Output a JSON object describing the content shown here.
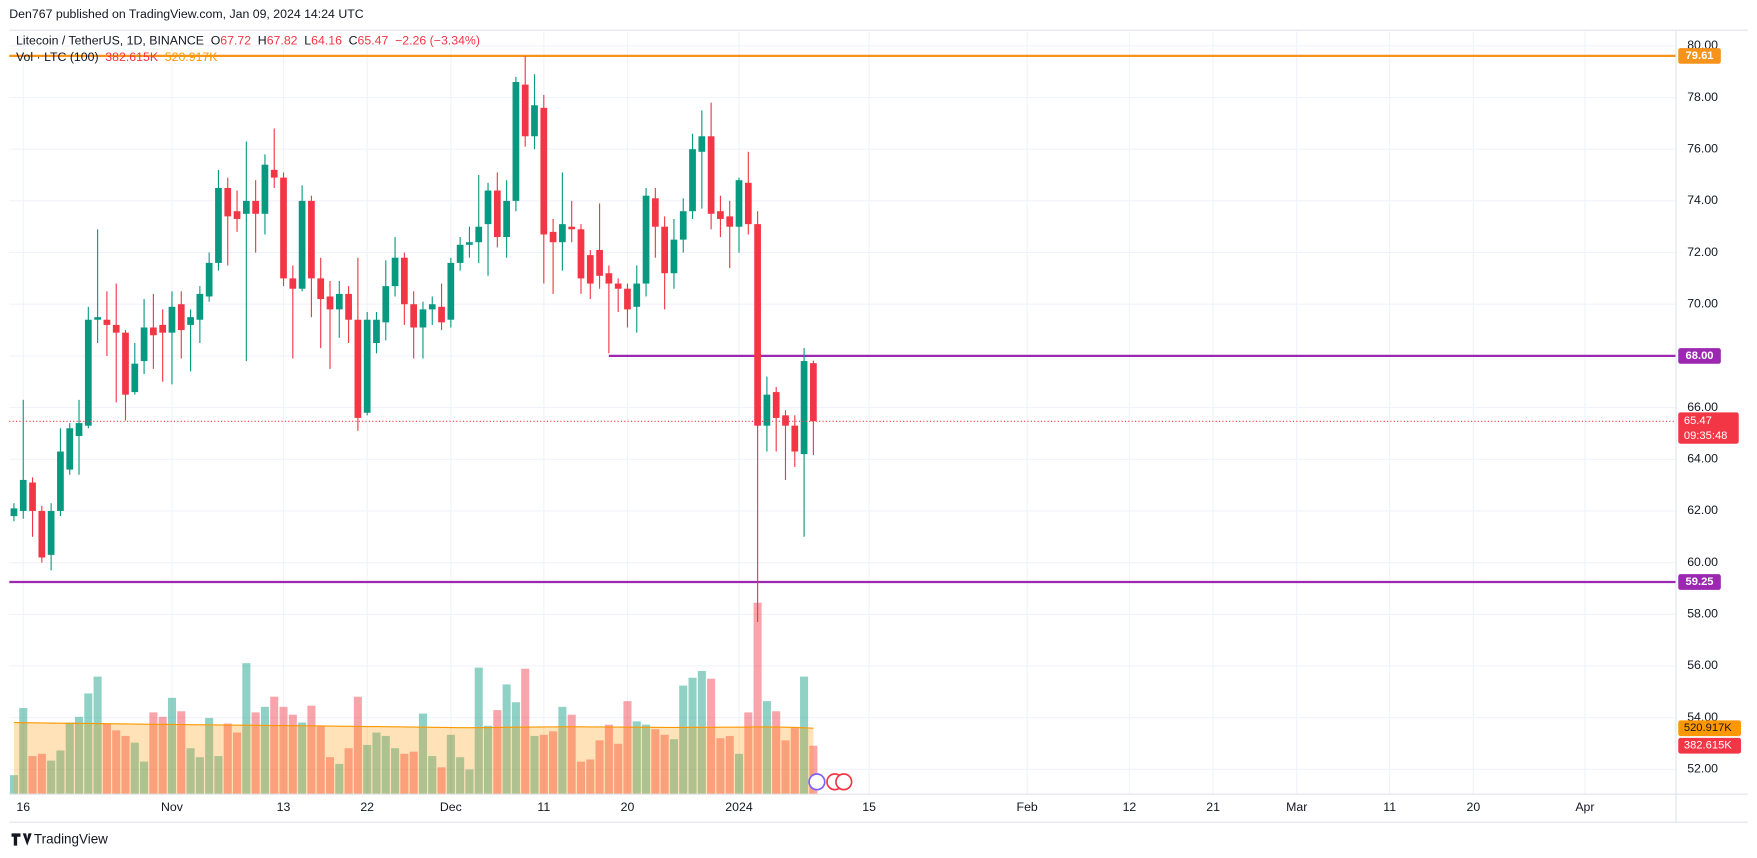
{
  "header": {
    "published": "Den767 published on TradingView.com, Jan 09, 2024 14:24 UTC",
    "brand": "TradingView"
  },
  "chart_data": {
    "type": "candlestick",
    "legend": {
      "symbol": "Litecoin / TetherUS, 1D, BINANCE",
      "ohlc_letters": [
        "O",
        "H",
        "L",
        "C"
      ],
      "change": "−2.26 (−3.34%)",
      "volume_title": "Vol · LTC (100)"
    },
    "up_color": "#089981",
    "down_color": "#f23645",
    "ma_color": "#ff9800",
    "candles": [
      [
        61.8,
        62.3,
        61.6,
        62.1
      ],
      [
        62.0,
        66.3,
        61.7,
        63.2
      ],
      [
        63.1,
        63.3,
        61.0,
        62.0
      ],
      [
        62.0,
        62.2,
        60.0,
        60.2
      ],
      [
        60.3,
        62.3,
        59.7,
        62.0
      ],
      [
        62.0,
        65.2,
        61.8,
        64.3
      ],
      [
        63.6,
        65.4,
        63.4,
        65.2
      ],
      [
        64.9,
        66.3,
        63.4,
        65.4
      ],
      [
        65.3,
        69.9,
        65.2,
        69.4
      ],
      [
        69.4,
        72.9,
        68.5,
        69.5
      ],
      [
        69.4,
        70.5,
        68.0,
        69.2
      ],
      [
        69.2,
        70.8,
        66.2,
        68.9
      ],
      [
        68.9,
        69.0,
        65.5,
        66.5
      ],
      [
        66.6,
        68.5,
        66.5,
        67.7
      ],
      [
        67.8,
        70.2,
        67.3,
        69.1
      ],
      [
        69.1,
        70.4,
        67.5,
        68.8
      ],
      [
        69.2,
        69.8,
        67.0,
        68.9
      ],
      [
        68.9,
        70.5,
        66.9,
        69.9
      ],
      [
        70.0,
        70.5,
        67.9,
        69.0
      ],
      [
        69.2,
        69.8,
        67.4,
        69.5
      ],
      [
        69.4,
        70.7,
        68.5,
        70.4
      ],
      [
        70.3,
        72.0,
        70.1,
        71.6
      ],
      [
        71.6,
        75.2,
        71.3,
        74.5
      ],
      [
        74.5,
        74.9,
        71.5,
        73.4
      ],
      [
        73.6,
        74.4,
        72.8,
        73.3
      ],
      [
        73.5,
        76.3,
        67.8,
        74.0
      ],
      [
        74.0,
        74.8,
        72.0,
        73.5
      ],
      [
        73.5,
        75.8,
        72.7,
        75.4
      ],
      [
        75.2,
        76.8,
        74.5,
        74.9
      ],
      [
        74.9,
        75.1,
        70.7,
        71.0
      ],
      [
        71.0,
        71.5,
        67.9,
        70.6
      ],
      [
        70.6,
        74.6,
        70.5,
        74.0
      ],
      [
        74.0,
        74.2,
        69.5,
        71.0
      ],
      [
        71.0,
        71.8,
        68.3,
        70.2
      ],
      [
        70.3,
        70.9,
        67.5,
        69.8
      ],
      [
        69.8,
        70.9,
        68.7,
        70.4
      ],
      [
        70.4,
        70.7,
        68.5,
        69.4
      ],
      [
        69.4,
        71.8,
        65.1,
        65.6
      ],
      [
        65.8,
        69.7,
        65.7,
        69.4
      ],
      [
        68.5,
        69.7,
        68.1,
        69.4
      ],
      [
        69.3,
        71.7,
        68.6,
        70.7
      ],
      [
        70.7,
        72.6,
        70.3,
        71.8
      ],
      [
        71.8,
        72.0,
        69.2,
        70.0
      ],
      [
        70.0,
        70.5,
        67.9,
        69.1
      ],
      [
        69.1,
        70.1,
        67.9,
        69.8
      ],
      [
        69.8,
        70.3,
        69.2,
        70.0
      ],
      [
        69.9,
        70.8,
        69.0,
        69.3
      ],
      [
        69.4,
        71.8,
        69.1,
        71.6
      ],
      [
        71.6,
        72.6,
        71.3,
        72.3
      ],
      [
        72.3,
        73.0,
        71.8,
        72.4
      ],
      [
        72.4,
        75.0,
        71.6,
        73.0
      ],
      [
        73.1,
        74.7,
        71.1,
        74.4
      ],
      [
        74.4,
        75.1,
        72.2,
        72.6
      ],
      [
        72.6,
        74.8,
        71.8,
        74.0
      ],
      [
        74.0,
        78.8,
        73.6,
        78.6
      ],
      [
        78.5,
        79.6,
        76.1,
        76.5
      ],
      [
        76.5,
        78.9,
        76.0,
        77.7
      ],
      [
        77.6,
        78.1,
        70.8,
        72.7
      ],
      [
        72.8,
        73.3,
        70.4,
        72.4
      ],
      [
        72.4,
        75.1,
        71.3,
        73.1
      ],
      [
        73.0,
        74.0,
        72.4,
        72.9
      ],
      [
        72.9,
        73.1,
        70.4,
        71.0
      ],
      [
        71.9,
        72.1,
        70.2,
        70.8
      ],
      [
        72.1,
        73.9,
        70.6,
        71.1
      ],
      [
        71.2,
        71.5,
        68.1,
        70.8
      ],
      [
        70.8,
        71.0,
        69.7,
        70.6
      ],
      [
        70.6,
        70.8,
        69.1,
        69.8
      ],
      [
        69.9,
        71.5,
        68.9,
        70.8
      ],
      [
        70.8,
        74.5,
        70.3,
        74.2
      ],
      [
        74.1,
        74.5,
        71.8,
        73.0
      ],
      [
        73.0,
        73.4,
        69.8,
        71.2
      ],
      [
        71.2,
        73.3,
        70.6,
        72.5
      ],
      [
        72.5,
        74.1,
        72.0,
        73.6
      ],
      [
        73.6,
        76.6,
        73.3,
        76.0
      ],
      [
        75.9,
        77.5,
        73.7,
        76.5
      ],
      [
        76.5,
        77.8,
        72.9,
        73.5
      ],
      [
        73.6,
        74.2,
        72.6,
        73.3
      ],
      [
        73.4,
        74.0,
        71.4,
        73.0
      ],
      [
        73.0,
        74.9,
        72.0,
        74.8
      ],
      [
        74.7,
        75.9,
        72.7,
        73.1
      ],
      [
        73.1,
        73.6,
        57.7,
        65.3
      ],
      [
        65.3,
        67.2,
        64.3,
        66.5
      ],
      [
        66.6,
        66.8,
        64.3,
        65.6
      ],
      [
        65.7,
        65.9,
        63.2,
        65.3
      ],
      [
        65.3,
        65.7,
        63.7,
        64.3
      ],
      [
        64.2,
        68.3,
        61.0,
        67.8
      ],
      [
        67.72,
        67.82,
        64.16,
        65.47
      ]
    ],
    "volumes": [
      150000,
      681000,
      301000,
      319000,
      265000,
      345000,
      566000,
      611000,
      796000,
      929000,
      558000,
      504000,
      460000,
      407000,
      257000,
      646000,
      611000,
      761000,
      655000,
      363000,
      292000,
      602000,
      301000,
      558000,
      487000,
      1035000,
      646000,
      690000,
      770000,
      690000,
      628000,
      566000,
      699000,
      540000,
      292000,
      239000,
      363000,
      770000,
      389000,
      487000,
      460000,
      363000,
      319000,
      336000,
      637000,
      301000,
      212000,
      469000,
      292000,
      195000,
      1000000,
      540000,
      664000,
      867000,
      726000,
      991000,
      460000,
      469000,
      496000,
      690000,
      628000,
      257000,
      274000,
      425000,
      549000,
      398000,
      735000,
      575000,
      549000,
      513000,
      469000,
      434000,
      858000,
      920000,
      973000,
      912000,
      442000,
      460000,
      319000,
      646000,
      1513000,
      735000,
      655000,
      425000,
      522000,
      929000,
      382615
    ],
    "volume_ma": [
      566000,
      565000,
      564000,
      563000,
      562000,
      561000,
      560000,
      560000,
      559000,
      558000,
      557000,
      556000,
      555000,
      554000,
      553000,
      552000,
      552000,
      551000,
      550000,
      549000,
      548000,
      548000,
      547000,
      546000,
      545000,
      545000,
      544000,
      543000,
      542000,
      542000,
      541000,
      540000,
      540000,
      539000,
      538000,
      537000,
      536000,
      535000,
      534000,
      534000,
      533000,
      532000,
      531000,
      530000,
      529000,
      528000,
      527000,
      526000,
      525000,
      525000,
      525000,
      526000,
      527000,
      528000,
      529000,
      530000,
      530000,
      531000,
      531000,
      532000,
      532000,
      532000,
      531000,
      531000,
      530000,
      530000,
      529000,
      529000,
      528000,
      528000,
      527000,
      527000,
      527000,
      528000,
      528000,
      528000,
      529000,
      529000,
      529000,
      530000,
      531000,
      531000,
      530000,
      529000,
      527000,
      524000,
      520917
    ],
    "volume_labels": {
      "last": "382.615K",
      "ma": "520.917K"
    },
    "countdown": "09:35:48",
    "hlines": [
      {
        "value": 79.61,
        "color": "#f7931a"
      },
      {
        "value": 68,
        "label": "68.00",
        "color": "#9c27b0",
        "from_candle": 64
      },
      {
        "value": 59.25,
        "color": "#9c27b0"
      }
    ],
    "xlim": [
      -0.5,
      178.8
    ],
    "xticks": [
      {
        "value": 1,
        "label": "16"
      },
      {
        "value": 17,
        "label": "Nov"
      },
      {
        "value": 29,
        "label": "13"
      },
      {
        "value": 38,
        "label": "22"
      },
      {
        "value": 47,
        "label": "Dec"
      },
      {
        "value": 57,
        "label": "11"
      },
      {
        "value": 66,
        "label": "20"
      },
      {
        "value": 78,
        "label": "2024"
      },
      {
        "value": 92,
        "label": "15"
      },
      {
        "value": 109,
        "label": "Feb"
      },
      {
        "value": 120,
        "label": "12"
      },
      {
        "value": 129,
        "label": "21"
      },
      {
        "value": 138,
        "label": "Mar"
      },
      {
        "value": 148,
        "label": "11"
      },
      {
        "value": 157,
        "label": "20"
      },
      {
        "value": 169,
        "label": "Apr"
      }
    ],
    "ylim": [
      51.04,
      80.56
    ],
    "yticks": [
      {
        "value": 52,
        "label": "52.00"
      },
      {
        "value": 54,
        "label": "54.00"
      },
      {
        "value": 56,
        "label": "56.00"
      },
      {
        "value": 58,
        "label": "58.00"
      },
      {
        "value": 60,
        "label": "60.00"
      },
      {
        "value": 62,
        "label": "62.00"
      },
      {
        "value": 64,
        "label": "64.00"
      },
      {
        "value": 66,
        "label": "66.00"
      },
      {
        "value": 68,
        "label": "68.00"
      },
      {
        "value": 70,
        "label": "70.00"
      },
      {
        "value": 72,
        "label": "72.00"
      },
      {
        "value": 74,
        "label": "74.00"
      },
      {
        "value": 76,
        "label": "76.00"
      },
      {
        "value": 78,
        "label": "78.00"
      },
      {
        "value": 80,
        "label": "80.00"
      }
    ],
    "volume_ylim": [
      0,
      6027000
    ],
    "grid": true
  }
}
